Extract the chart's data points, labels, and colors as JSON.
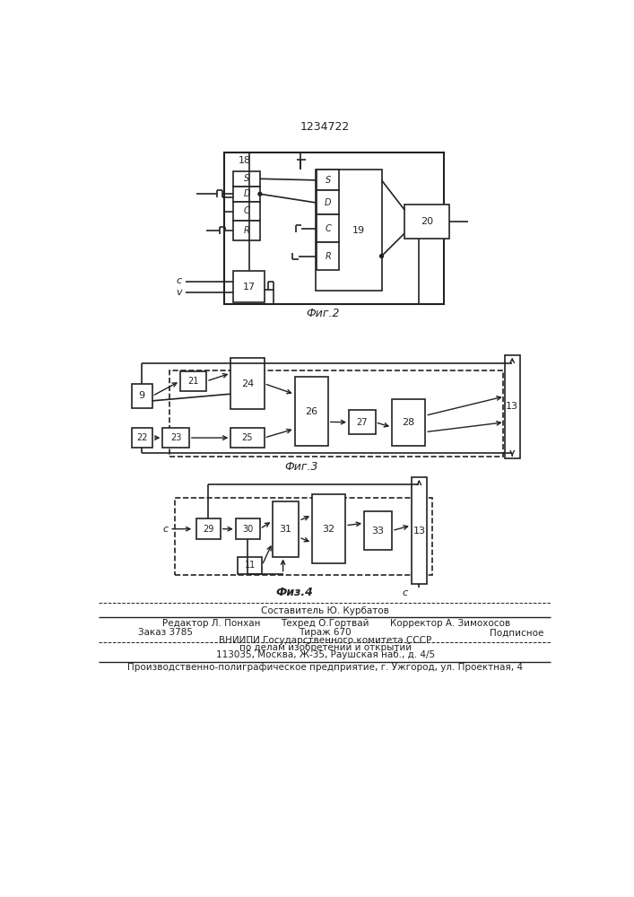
{
  "title": "1234722",
  "fig2_label": "Фиг.2",
  "fig3_label": "Фиг.3",
  "fig4_label": "Физ.4",
  "line_color": "#222222"
}
